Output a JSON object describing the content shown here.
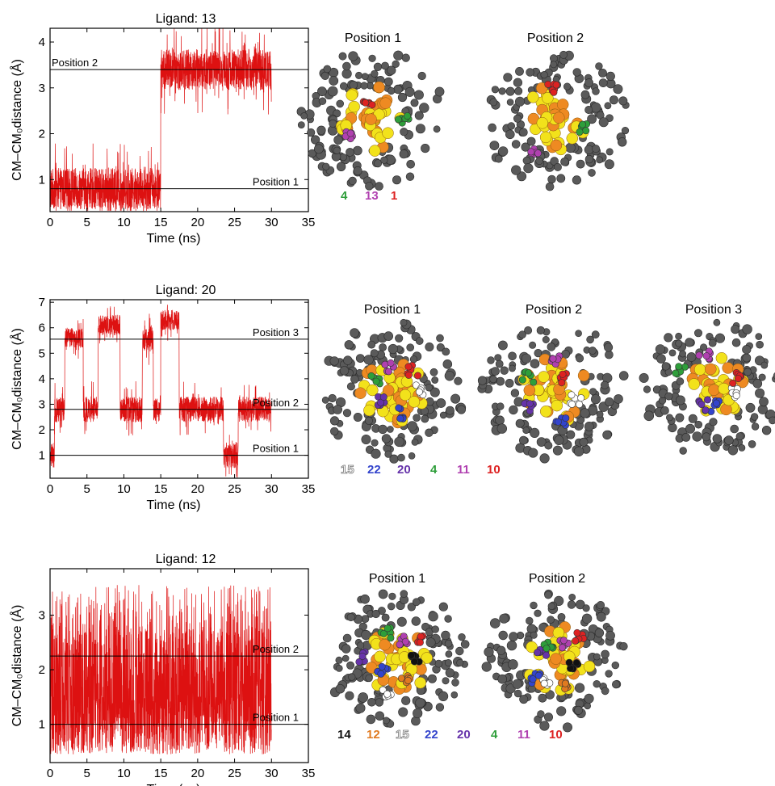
{
  "chart_data": [
    {
      "type": "line",
      "title": "Ligand: 13",
      "xlabel": "Time (ns)",
      "ylabel": "CM–CM₀distance (Å)",
      "xlim": [
        0,
        35
      ],
      "ylim": [
        0.3,
        4.3
      ],
      "xticks": [
        "0",
        "5",
        "10",
        "15",
        "20",
        "25",
        "30",
        "35"
      ],
      "yticks": [
        "1",
        "2",
        "3",
        "4"
      ],
      "reference_lines": [
        {
          "label": "Position 1",
          "y": 0.8
        },
        {
          "label": "Position 2",
          "y": 3.4
        }
      ],
      "series": [
        {
          "color": "#dd1111",
          "segments": [
            {
              "x": [
                0,
                15.0
              ],
              "mean": 0.8,
              "spread": 0.45,
              "max": 2.5
            },
            {
              "x": [
                15.0,
                30.0
              ],
              "mean": 3.4,
              "spread": 0.45,
              "max": 4.3
            }
          ]
        }
      ],
      "states": [
        "Position 1",
        "Position 2"
      ],
      "legend": [
        {
          "text": "4",
          "color": "#2e9e3a"
        },
        {
          "text": "13",
          "color": "#b040b0"
        },
        {
          "text": "1",
          "color": "#dd2222"
        }
      ]
    },
    {
      "type": "line",
      "title": "Ligand: 20",
      "xlabel": "Time (ns)",
      "ylabel": "CM–CM₀distance (Å)",
      "xlim": [
        0,
        35
      ],
      "ylim": [
        0.1,
        7.1
      ],
      "xticks": [
        "0",
        "5",
        "10",
        "15",
        "20",
        "25",
        "30",
        "35"
      ],
      "yticks": [
        "1",
        "2",
        "3",
        "4",
        "5",
        "6",
        "7"
      ],
      "reference_lines": [
        {
          "label": "Position 1",
          "y": 1.0
        },
        {
          "label": "Position 2",
          "y": 2.8
        },
        {
          "label": "Position 3",
          "y": 5.55
        }
      ],
      "series": [
        {
          "color": "#dd1111",
          "segments": [
            {
              "x": [
                0,
                0.6
              ],
              "mean": 1.0,
              "spread": 0.5
            },
            {
              "x": [
                0.6,
                2.0
              ],
              "mean": 2.8,
              "spread": 0.5
            },
            {
              "x": [
                2.0,
                4.5
              ],
              "mean": 5.6,
              "spread": 0.4
            },
            {
              "x": [
                4.5,
                6.5
              ],
              "mean": 2.8,
              "spread": 0.5
            },
            {
              "x": [
                6.5,
                9.5
              ],
              "mean": 6.1,
              "spread": 0.4
            },
            {
              "x": [
                9.5,
                12.5
              ],
              "mean": 2.8,
              "spread": 0.5
            },
            {
              "x": [
                12.5,
                14.0
              ],
              "mean": 5.6,
              "spread": 0.5
            },
            {
              "x": [
                14.0,
                15.0
              ],
              "mean": 2.8,
              "spread": 0.5
            },
            {
              "x": [
                15.0,
                17.5
              ],
              "mean": 6.3,
              "spread": 0.4
            },
            {
              "x": [
                17.5,
                23.5
              ],
              "mean": 2.8,
              "spread": 0.5
            },
            {
              "x": [
                23.5,
                25.5
              ],
              "mean": 1.0,
              "spread": 0.5
            },
            {
              "x": [
                25.5,
                30.0
              ],
              "mean": 2.8,
              "spread": 0.5
            }
          ]
        }
      ],
      "states": [
        "Position 1",
        "Position 2",
        "Position 3"
      ],
      "legend": [
        {
          "text": "15",
          "color": "#ffffff"
        },
        {
          "text": "22",
          "color": "#3344cc"
        },
        {
          "text": "20",
          "color": "#6633aa"
        },
        {
          "text": "4",
          "color": "#2e9e3a"
        },
        {
          "text": "11",
          "color": "#b040b0"
        },
        {
          "text": "10",
          "color": "#dd2222"
        }
      ]
    },
    {
      "type": "line",
      "title": "Ligand: 12",
      "xlabel": "Time (ns)",
      "ylabel": "CM–CM₀distance (Å)",
      "xlim": [
        0,
        35
      ],
      "ylim": [
        0.3,
        3.85
      ],
      "xticks": [
        "0",
        "5",
        "10",
        "15",
        "20",
        "25",
        "30",
        "35"
      ],
      "yticks": [
        "1",
        "2",
        "3"
      ],
      "reference_lines": [
        {
          "label": "Position 1",
          "y": 1.0
        },
        {
          "label": "Position 2",
          "y": 2.25
        }
      ],
      "series": [
        {
          "color": "#dd1111",
          "segments": [
            {
              "x": [
                0,
                30.0
              ],
              "mean": 1.6,
              "spread": 1.2,
              "switching": true
            }
          ]
        }
      ],
      "states": [
        "Position 1",
        "Position 2"
      ],
      "legend": [
        {
          "text": "14",
          "color": "#111111"
        },
        {
          "text": "12",
          "color": "#e07a20"
        },
        {
          "text": "15",
          "color": "#ffffff"
        },
        {
          "text": "22",
          "color": "#3344cc"
        },
        {
          "text": "20",
          "color": "#6633aa"
        },
        {
          "text": "4",
          "color": "#2e9e3a"
        },
        {
          "text": "11",
          "color": "#b040b0"
        },
        {
          "text": "10",
          "color": "#dd2222"
        }
      ]
    }
  ]
}
